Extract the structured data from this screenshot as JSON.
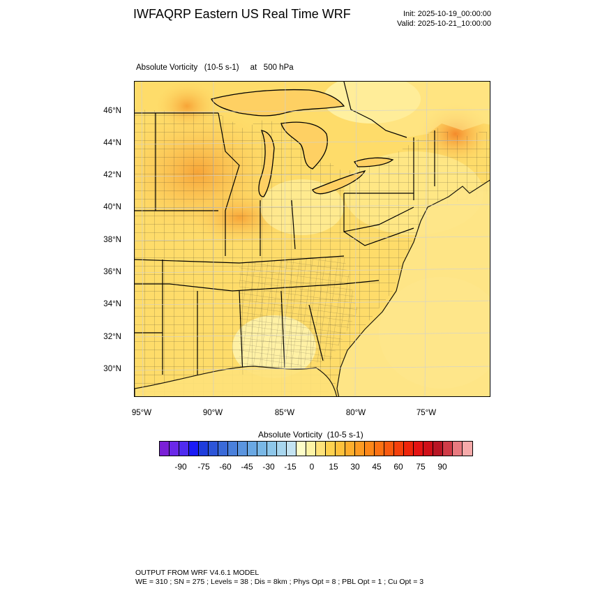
{
  "title": "IWFAQRP Eastern US Real Time WRF",
  "init": "Init: 2025-10-19_00:00:00",
  "valid": "Valid: 2025-10-21_10:00:00",
  "subtitle": "Absolute Vorticity   (10-5 s-1)     at   500 hPa",
  "map": {
    "latitude_labels": [
      "46°N",
      "44°N",
      "42°N",
      "40°N",
      "38°N",
      "36°N",
      "34°N",
      "32°N",
      "30°N"
    ],
    "longitude_labels": [
      "95°W",
      "90°W",
      "85°W",
      "80°W",
      "75°W"
    ]
  },
  "colorbar": {
    "title": "Absolute Vorticity  (10-5 s-1)",
    "labels": [
      "-90",
      "-75",
      "-60",
      "-45",
      "-30",
      "-15",
      "0",
      "15",
      "30",
      "45",
      "60",
      "75",
      "90"
    ],
    "colors": [
      "#7a1fd6",
      "#6a28e8",
      "#4f2bf0",
      "#1b1bf5",
      "#1f3ddc",
      "#2d55d8",
      "#3a6ad8",
      "#4a80db",
      "#5b95df",
      "#6aa8e3",
      "#7ab8e6",
      "#8ec7ea",
      "#a8d6ee",
      "#c4e3f1",
      "#fdfdc8",
      "#fdf3a6",
      "#fee27a",
      "#fed14f",
      "#fec13c",
      "#feae2d",
      "#fd9b22",
      "#fd8718",
      "#fc7112",
      "#f95a0f",
      "#f5400c",
      "#ee250b",
      "#e41313",
      "#cf0f18",
      "#b81524",
      "#d03c48",
      "#e87a80",
      "#f5aaaa"
    ]
  },
  "footer": {
    "line1": "OUTPUT FROM WRF V4.6.1 MODEL",
    "line2": "WE = 310 ; SN = 275 ; Levels = 38 ; Dis = 8km ; Phys Opt = 8 ; PBL Opt = 1 ; Cu Opt = 3"
  }
}
